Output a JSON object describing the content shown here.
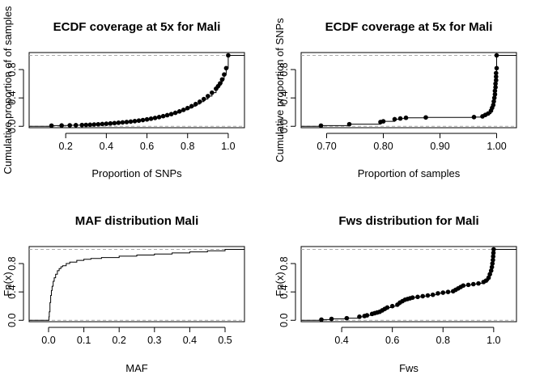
{
  "chart_data": [
    {
      "type": "line",
      "subtype": "ecdf",
      "title": "ECDF coverage at 5x for Mali",
      "xlabel": "Proportion of SNPs",
      "ylabel": "Cumulative proportion of of samples",
      "xlim": [
        0.02,
        1.08
      ],
      "ylim": [
        -0.02,
        1.04
      ],
      "xticks": [
        0.2,
        0.4,
        0.6,
        0.8,
        1.0
      ],
      "xtick_labels": [
        "0.2",
        "0.4",
        "0.6",
        "0.8",
        "1.0"
      ],
      "yticks": [
        0.0,
        0.4,
        0.8
      ],
      "ytick_labels": [
        "0.0",
        "0.4",
        "0.8"
      ],
      "reference_lines": [
        0,
        1
      ],
      "marker": "point",
      "x": [
        0.13,
        0.18,
        0.22,
        0.25,
        0.28,
        0.3,
        0.32,
        0.34,
        0.36,
        0.38,
        0.4,
        0.42,
        0.44,
        0.46,
        0.48,
        0.5,
        0.52,
        0.54,
        0.56,
        0.58,
        0.6,
        0.62,
        0.64,
        0.66,
        0.68,
        0.7,
        0.72,
        0.74,
        0.76,
        0.78,
        0.8,
        0.82,
        0.84,
        0.86,
        0.88,
        0.9,
        0.92,
        0.94,
        0.95,
        0.96,
        0.97,
        0.98,
        0.99,
        1.0
      ],
      "y": [
        0.01,
        0.012,
        0.014,
        0.016,
        0.018,
        0.02,
        0.022,
        0.025,
        0.028,
        0.032,
        0.036,
        0.04,
        0.045,
        0.05,
        0.055,
        0.06,
        0.066,
        0.073,
        0.08,
        0.088,
        0.097,
        0.107,
        0.118,
        0.13,
        0.143,
        0.157,
        0.172,
        0.19,
        0.21,
        0.232,
        0.257,
        0.284,
        0.314,
        0.347,
        0.384,
        0.426,
        0.474,
        0.53,
        0.565,
        0.605,
        0.66,
        0.73,
        0.82,
        1.0
      ]
    },
    {
      "type": "line",
      "subtype": "ecdf",
      "title": "ECDF coverage at 5x for Mali",
      "xlabel": "Proportion of samples",
      "ylabel": "Cumulative proportion of SNPs",
      "xlim": [
        0.655,
        1.035
      ],
      "ylim": [
        -0.02,
        1.04
      ],
      "xticks": [
        0.7,
        0.8,
        0.9,
        1.0
      ],
      "xtick_labels": [
        "0.70",
        "0.80",
        "0.90",
        "1.00"
      ],
      "yticks": [
        0.0,
        0.4,
        0.8
      ],
      "ytick_labels": [
        "0.0",
        "0.4",
        "0.8"
      ],
      "reference_lines": [
        0,
        1
      ],
      "marker": "point",
      "x": [
        0.69,
        0.74,
        0.795,
        0.8,
        0.82,
        0.83,
        0.84,
        0.875,
        0.96,
        0.975,
        0.98,
        0.985,
        0.99,
        0.992,
        0.994,
        0.995,
        0.996,
        0.997,
        0.997,
        0.998,
        0.998,
        0.999,
        0.999,
        0.999,
        1.0,
        1.0
      ],
      "y": [
        0.01,
        0.03,
        0.06,
        0.07,
        0.1,
        0.11,
        0.12,
        0.125,
        0.13,
        0.14,
        0.16,
        0.18,
        0.22,
        0.26,
        0.3,
        0.35,
        0.4,
        0.45,
        0.5,
        0.55,
        0.6,
        0.65,
        0.7,
        0.75,
        0.82,
        1.0
      ]
    },
    {
      "type": "line",
      "subtype": "ecdf",
      "title": "MAF distribution Mali",
      "xlabel": "MAF",
      "ylabel": "Fn(x)",
      "xlim": [
        -0.055,
        0.555
      ],
      "ylim": [
        -0.02,
        1.04
      ],
      "xticks": [
        0.0,
        0.1,
        0.2,
        0.3,
        0.4,
        0.5
      ],
      "xtick_labels": [
        "0.0",
        "0.1",
        "0.2",
        "0.3",
        "0.4",
        "0.5"
      ],
      "yticks": [
        0.0,
        0.4,
        0.8
      ],
      "ytick_labels": [
        "0.0",
        "0.4",
        "0.8"
      ],
      "reference_lines": [
        0,
        1
      ],
      "marker": "none",
      "x": [
        0.0,
        0.001,
        0.002,
        0.004,
        0.006,
        0.008,
        0.01,
        0.013,
        0.016,
        0.02,
        0.025,
        0.03,
        0.035,
        0.04,
        0.05,
        0.06,
        0.08,
        0.1,
        0.12,
        0.15,
        0.2,
        0.25,
        0.3,
        0.35,
        0.4,
        0.45,
        0.5
      ],
      "y": [
        0.0,
        0.05,
        0.12,
        0.25,
        0.35,
        0.42,
        0.48,
        0.55,
        0.6,
        0.65,
        0.7,
        0.73,
        0.755,
        0.77,
        0.8,
        0.82,
        0.845,
        0.86,
        0.872,
        0.885,
        0.905,
        0.92,
        0.935,
        0.95,
        0.965,
        0.98,
        1.0
      ]
    },
    {
      "type": "line",
      "subtype": "ecdf",
      "title": "Fws distribution for Mali",
      "xlabel": "Fws",
      "ylabel": "Fn(x)",
      "xlim": [
        0.24,
        1.09
      ],
      "ylim": [
        -0.02,
        1.04
      ],
      "xticks": [
        0.4,
        0.6,
        0.8,
        1.0
      ],
      "xtick_labels": [
        "0.4",
        "0.6",
        "0.8",
        "1.0"
      ],
      "yticks": [
        0.0,
        0.4,
        0.8
      ],
      "ytick_labels": [
        "0.0",
        "0.4",
        "0.8"
      ],
      "reference_lines": [
        0,
        1
      ],
      "marker": "point",
      "x": [
        0.32,
        0.36,
        0.42,
        0.47,
        0.49,
        0.5,
        0.52,
        0.53,
        0.54,
        0.55,
        0.56,
        0.57,
        0.58,
        0.6,
        0.62,
        0.63,
        0.64,
        0.65,
        0.66,
        0.67,
        0.68,
        0.7,
        0.72,
        0.74,
        0.76,
        0.78,
        0.8,
        0.82,
        0.84,
        0.85,
        0.86,
        0.87,
        0.88,
        0.9,
        0.92,
        0.94,
        0.96,
        0.97,
        0.98,
        0.985,
        0.99,
        0.993,
        0.995,
        0.997,
        0.998,
        0.999,
        1.0
      ],
      "y": [
        0.01,
        0.02,
        0.03,
        0.05,
        0.06,
        0.07,
        0.09,
        0.1,
        0.11,
        0.12,
        0.14,
        0.16,
        0.18,
        0.2,
        0.22,
        0.25,
        0.27,
        0.29,
        0.3,
        0.31,
        0.32,
        0.33,
        0.34,
        0.35,
        0.36,
        0.38,
        0.39,
        0.4,
        0.41,
        0.43,
        0.45,
        0.47,
        0.49,
        0.5,
        0.51,
        0.52,
        0.54,
        0.56,
        0.6,
        0.65,
        0.7,
        0.75,
        0.8,
        0.85,
        0.9,
        0.95,
        1.0
      ]
    }
  ]
}
